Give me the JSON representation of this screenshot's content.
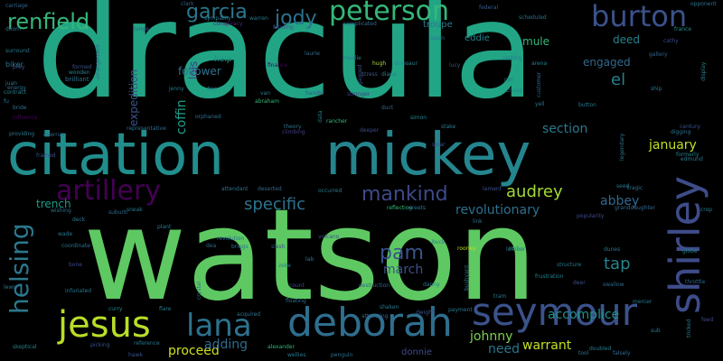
{
  "background": "#000000",
  "words": [
    {
      "text": "dracula",
      "color": "#21a585"
    },
    {
      "text": "watson",
      "color": "#5ec962"
    },
    {
      "text": "citation",
      "color": "#218e8d"
    },
    {
      "text": "mickey",
      "color": "#25858e"
    },
    {
      "text": "shirley",
      "color": "#3e4c8a"
    },
    {
      "text": "deborah",
      "color": "#2e6e8e"
    },
    {
      "text": "seymour",
      "color": "#3b528b"
    },
    {
      "text": "jesus",
      "color": "#b8de29"
    },
    {
      "text": "lana",
      "color": "#2c728e"
    },
    {
      "text": "burton",
      "color": "#3b528b"
    },
    {
      "text": "peterson",
      "color": "#35b779"
    },
    {
      "text": "artillery",
      "color": "#440154"
    },
    {
      "text": "helsing",
      "color": "#2a788e"
    },
    {
      "text": "renfield",
      "color": "#35b779"
    },
    {
      "text": "garcia",
      "color": "#2a788e"
    },
    {
      "text": "jody",
      "color": "#2c728e"
    },
    {
      "text": "mankind",
      "color": "#3e4a89"
    },
    {
      "text": "pam",
      "color": "#3a538b"
    },
    {
      "text": "audrey",
      "color": "#a2da37"
    },
    {
      "text": "specific",
      "color": "#2c738e"
    },
    {
      "text": "revolutionary",
      "color": "#2d708e"
    },
    {
      "text": "march",
      "color": "#3b528b"
    },
    {
      "text": "tap",
      "color": "#25848e"
    },
    {
      "text": "abbey",
      "color": "#31688e"
    },
    {
      "text": "january",
      "color": "#c2df23"
    },
    {
      "text": "section",
      "color": "#2a788e"
    },
    {
      "text": "accomplice",
      "color": "#20928c"
    },
    {
      "text": "johnny",
      "color": "#7ad151"
    },
    {
      "text": "warrant",
      "color": "#c5e021"
    },
    {
      "text": "proceed",
      "color": "#cde11d"
    },
    {
      "text": "adding",
      "color": "#2f6c8e"
    },
    {
      "text": "donnie",
      "color": "#3e4c8a"
    },
    {
      "text": "need",
      "color": "#2a788e"
    },
    {
      "text": "trench",
      "color": "#1e9b8a"
    },
    {
      "text": "follower",
      "color": "#2c728e"
    },
    {
      "text": "coffin",
      "color": "#1f9e89"
    },
    {
      "text": "lois",
      "color": "#433e85"
    },
    {
      "text": "expedition",
      "color": "#3b528b"
    },
    {
      "text": "engaged",
      "color": "#31688e"
    },
    {
      "text": "deed",
      "color": "#26828e"
    },
    {
      "text": "el",
      "color": "#27808e"
    },
    {
      "text": "mule",
      "color": "#35b779"
    },
    {
      "text": "eddie",
      "color": "#26828e"
    },
    {
      "text": "troupe",
      "color": "#2a788e"
    },
    {
      "text": "help",
      "color": "#21918c"
    },
    {
      "text": "biker",
      "color": "#297a8e"
    },
    {
      "text": "brilliant",
      "color": "#2c728e"
    },
    {
      "text": "formed",
      "color": "#3b528b"
    },
    {
      "text": "clark",
      "color": "#355f8d"
    },
    {
      "text": "sympathy",
      "color": "#2a788e"
    },
    {
      "text": "conspiracy",
      "color": "#482878"
    },
    {
      "text": "funding",
      "color": "#3b528b"
    },
    {
      "text": "complicated",
      "color": "#31688e"
    },
    {
      "text": "scheduled",
      "color": "#2c728e"
    },
    {
      "text": "federal",
      "color": "#365c8d"
    },
    {
      "text": "carriage",
      "color": "#31688e"
    },
    {
      "text": "lunge",
      "color": "#38598c"
    },
    {
      "text": "opponent",
      "color": "#2c728e"
    },
    {
      "text": "france",
      "color": "#21918c"
    },
    {
      "text": "cathy",
      "color": "#3e4a89"
    },
    {
      "text": "gallery",
      "color": "#32648e"
    },
    {
      "text": "display",
      "color": "#27808e"
    },
    {
      "text": "button",
      "color": "#2a788e"
    },
    {
      "text": "cruise",
      "color": "#26828e"
    },
    {
      "text": "customer",
      "color": "#31688e"
    },
    {
      "text": "yell",
      "color": "#2a788e"
    },
    {
      "text": "ron",
      "color": "#2c728e"
    },
    {
      "text": "diana",
      "color": "#26828e"
    },
    {
      "text": "rosalie",
      "color": "#2a788e"
    },
    {
      "text": "hugh",
      "color": "#a5db36"
    },
    {
      "text": "dinosaur",
      "color": "#25848e"
    },
    {
      "text": "laurie",
      "color": "#2f6c8e"
    },
    {
      "text": "stress",
      "color": "#3b528b"
    },
    {
      "text": "duct",
      "color": "#31688e"
    },
    {
      "text": "simon",
      "color": "#25858e"
    },
    {
      "text": "stake",
      "color": "#2a788e"
    },
    {
      "text": "deeper",
      "color": "#3e4a89"
    },
    {
      "text": "theory",
      "color": "#2c728e"
    },
    {
      "text": "climbing",
      "color": "#433e85"
    },
    {
      "text": "rancher",
      "color": "#37b878"
    },
    {
      "text": "representative",
      "color": "#2e6e8e"
    },
    {
      "text": "orphaned",
      "color": "#2c728e"
    },
    {
      "text": "abraham",
      "color": "#35b779"
    },
    {
      "text": "tex",
      "color": "#2a788e"
    },
    {
      "text": "van",
      "color": "#26828e"
    },
    {
      "text": "handle",
      "color": "#3b528b"
    },
    {
      "text": "stronger",
      "color": "#433e85"
    },
    {
      "text": "finance",
      "color": "#440154"
    },
    {
      "text": "attendant",
      "color": "#2c728e"
    },
    {
      "text": "deserted",
      "color": "#31688e"
    },
    {
      "text": "occurred",
      "color": "#2a788e"
    },
    {
      "text": "reflection",
      "color": "#35b779"
    },
    {
      "text": "greets",
      "color": "#2a788e"
    },
    {
      "text": "lament",
      "color": "#3b528b"
    },
    {
      "text": "seed",
      "color": "#2a788e"
    },
    {
      "text": "tragic",
      "color": "#2c728e"
    },
    {
      "text": "edmund",
      "color": "#2a788e"
    },
    {
      "text": "formerly",
      "color": "#26828e"
    },
    {
      "text": "granddaughter",
      "color": "#31688e"
    },
    {
      "text": "crop",
      "color": "#2a788e"
    },
    {
      "text": "popularity",
      "color": "#3e4a89"
    },
    {
      "text": "link",
      "color": "#2c728e"
    },
    {
      "text": "buck",
      "color": "#2a788e"
    },
    {
      "text": "rooney",
      "color": "#b5de2b"
    },
    {
      "text": "rocky",
      "color": "#35b779"
    },
    {
      "text": "structure",
      "color": "#2a788e"
    },
    {
      "text": "frustration",
      "color": "#26828e"
    },
    {
      "text": "swallow",
      "color": "#31688e"
    },
    {
      "text": "globe",
      "color": "#26828e"
    },
    {
      "text": "dunes",
      "color": "#2a788e"
    },
    {
      "text": "deer",
      "color": "#3b528b"
    },
    {
      "text": "danny",
      "color": "#2a788e"
    },
    {
      "text": "destruction",
      "color": "#31688e"
    },
    {
      "text": "floating",
      "color": "#2c728e"
    },
    {
      "text": "count",
      "color": "#3e4a89"
    },
    {
      "text": "lab",
      "color": "#2a788e"
    },
    {
      "text": "zeke",
      "color": "#26828e"
    },
    {
      "text": "slash",
      "color": "#3b528b"
    },
    {
      "text": "briggs",
      "color": "#2a788e"
    },
    {
      "text": "revolution",
      "color": "#2c728e"
    },
    {
      "text": "dea",
      "color": "#31688e"
    },
    {
      "text": "plant",
      "color": "#2a788e"
    },
    {
      "text": "volcano",
      "color": "#3b528b"
    },
    {
      "text": "wade",
      "color": "#2a788e"
    },
    {
      "text": "coordinate",
      "color": "#2c728e"
    },
    {
      "text": "bone",
      "color": "#3e4a89"
    },
    {
      "text": "infuriated",
      "color": "#2a788e"
    },
    {
      "text": "curry",
      "color": "#26828e"
    },
    {
      "text": "flare",
      "color": "#2a788e"
    },
    {
      "text": "acquired",
      "color": "#2c728e"
    },
    {
      "text": "shaken",
      "color": "#2a788e"
    },
    {
      "text": "dwight",
      "color": "#3b528b"
    },
    {
      "text": "payment",
      "color": "#2a788e"
    },
    {
      "text": "attracting",
      "color": "#31688e"
    },
    {
      "text": "alexander",
      "color": "#35b779"
    },
    {
      "text": "wellies",
      "color": "#2a788e"
    },
    {
      "text": "penguin",
      "color": "#2c728e"
    },
    {
      "text": "reference",
      "color": "#2a788e"
    },
    {
      "text": "skeptical",
      "color": "#26828e"
    },
    {
      "text": "picking",
      "color": "#3b528b"
    },
    {
      "text": "doubled",
      "color": "#2a788e"
    },
    {
      "text": "tool",
      "color": "#2c728e"
    },
    {
      "text": "falsely",
      "color": "#31688e"
    },
    {
      "text": "tricked",
      "color": "#2a788e"
    },
    {
      "text": "feed",
      "color": "#3e4a89"
    },
    {
      "text": "lewis",
      "color": "#2a788e"
    },
    {
      "text": "wishing",
      "color": "#2c728e"
    },
    {
      "text": "deck",
      "color": "#2a788e"
    },
    {
      "text": "framed",
      "color": "#3b528b"
    },
    {
      "text": "juan",
      "color": "#2a788e"
    },
    {
      "text": "contract",
      "color": "#26828e"
    },
    {
      "text": "bride",
      "color": "#2c728e"
    },
    {
      "text": "influence",
      "color": "#440154"
    },
    {
      "text": "providing",
      "color": "#2a788e"
    },
    {
      "text": "overrun",
      "color": "#31688e"
    },
    {
      "text": "surround",
      "color": "#2a788e"
    },
    {
      "text": "prey",
      "color": "#3b528b"
    },
    {
      "text": "energy",
      "color": "#2c728e"
    },
    {
      "text": "doom",
      "color": "#2a788e"
    },
    {
      "text": "wooden",
      "color": "#26828e"
    },
    {
      "text": "fu",
      "color": "#2a788e"
    },
    {
      "text": "arrangement",
      "color": "#31688e"
    },
    {
      "text": "warren",
      "color": "#2a788e"
    },
    {
      "text": "century",
      "color": "#3b528b"
    },
    {
      "text": "legendary",
      "color": "#2a788e"
    },
    {
      "text": "digging",
      "color": "#2c728e"
    },
    {
      "text": "visiting",
      "color": "#2a788e"
    },
    {
      "text": "arena",
      "color": "#26828e"
    },
    {
      "text": "lucy",
      "color": "#3b528b"
    },
    {
      "text": "sub",
      "color": "#2a788e"
    },
    {
      "text": "bushyard",
      "color": "#31688e"
    },
    {
      "text": "mercer",
      "color": "#2a788e"
    },
    {
      "text": "solar",
      "color": "#3b528b"
    },
    {
      "text": "tram",
      "color": "#2a788e"
    },
    {
      "text": "crystal",
      "color": "#2c728e"
    },
    {
      "text": "suburb",
      "color": "#31688e"
    },
    {
      "text": "sneak",
      "color": "#2a788e"
    },
    {
      "text": "hawk",
      "color": "#3b528b"
    },
    {
      "text": "ship",
      "color": "#2a788e"
    },
    {
      "text": "data",
      "color": "#26828e"
    },
    {
      "text": "gagged",
      "color": "#3b528b"
    },
    {
      "text": "jenny",
      "color": "#2a788e"
    },
    {
      "text": "lumber",
      "color": "#2c728e"
    },
    {
      "text": "throttle",
      "color": "#31688e"
    },
    {
      "text": "asian",
      "color": "#2a788e"
    }
  ]
}
